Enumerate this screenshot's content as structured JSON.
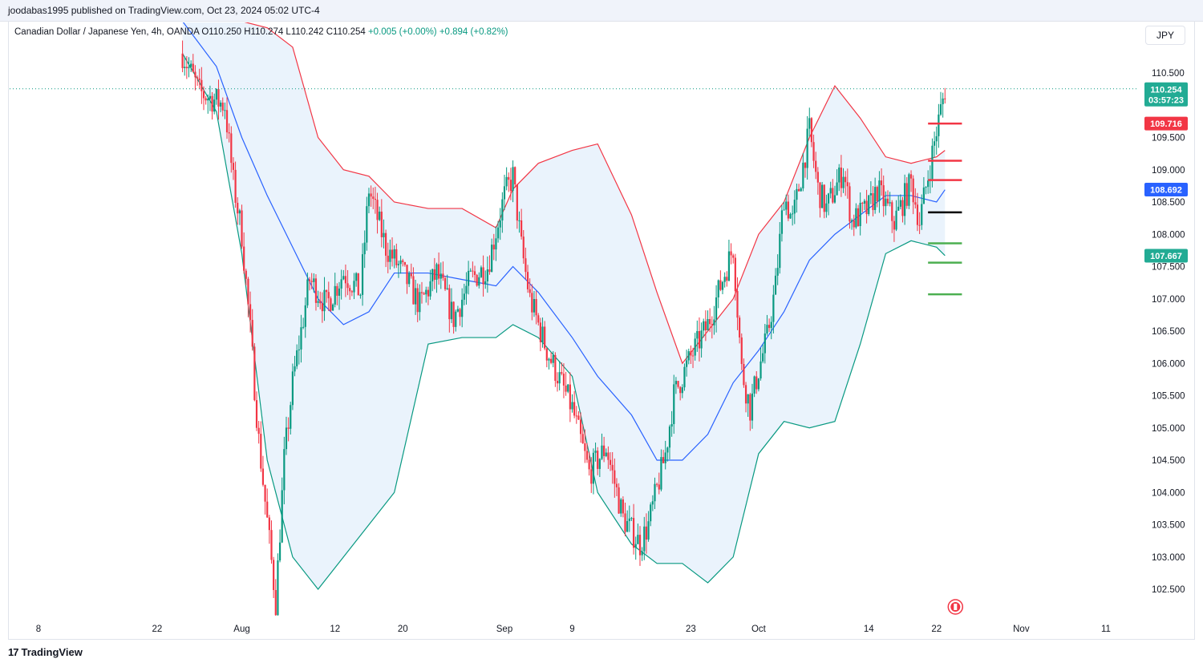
{
  "header": {
    "published_line": "joodabas1995 published on TradingView.com, Oct 23, 2024 05:02 UTC-4",
    "legend_prefix": "Canadian Dollar / Japanese Yen, 4h, OANDA",
    "legend_ohlc": "O110.250  H110.274  L110.242  C110.254",
    "legend_change": "+0.005 (+0.00%)  +0.894 (+0.82%)",
    "currency": "JPY"
  },
  "footer": {
    "brand": "TradingView",
    "logo": "17"
  },
  "colors": {
    "up": "#089981",
    "down": "#f23645",
    "upper_band": "#f23645",
    "basis": "#2962ff",
    "lower_band": "#089981",
    "band_fill": "#e3effb",
    "price_tag": "#22ab94"
  },
  "chart_data": {
    "type": "candlestick",
    "symbol": "CADJPY",
    "timeframe": "4h",
    "y_ticks": [
      110.5,
      110.0,
      109.5,
      109.0,
      108.5,
      108.0,
      107.5,
      107.0,
      106.5,
      106.0,
      105.5,
      105.0,
      104.5,
      104.0,
      103.5,
      103.0,
      102.5
    ],
    "y_tick_labels": [
      "110.500",
      "",
      "109.500",
      "109.000",
      "108.500",
      "108.000",
      "107.500",
      "107.000",
      "106.500",
      "106.000",
      "105.500",
      "105.000",
      "104.500",
      "104.000",
      "103.500",
      "103.000",
      "102.500"
    ],
    "ylim": [
      102.0,
      111.0
    ],
    "x_ticks": [
      {
        "label": "8",
        "date": "2024-07-08"
      },
      {
        "label": "22",
        "date": "2024-07-22"
      },
      {
        "label": "Aug",
        "date": "2024-08-01"
      },
      {
        "label": "12",
        "date": "2024-08-12"
      },
      {
        "label": "20",
        "date": "2024-08-20"
      },
      {
        "label": "Sep",
        "date": "2024-09-01"
      },
      {
        "label": "9",
        "date": "2024-09-09"
      },
      {
        "label": "23",
        "date": "2024-09-23"
      },
      {
        "label": "Oct",
        "date": "2024-10-01"
      },
      {
        "label": "14",
        "date": "2024-10-14"
      },
      {
        "label": "22",
        "date": "2024-10-22"
      },
      {
        "label": "Nov",
        "date": "2024-11-01"
      },
      {
        "label": "11",
        "date": "2024-11-11"
      }
    ],
    "price_path": [
      {
        "date": "2024-07-25",
        "price": 110.8
      },
      {
        "date": "2024-07-27",
        "price": 110.2
      },
      {
        "date": "2024-07-30",
        "price": 110.0
      },
      {
        "date": "2024-07-31",
        "price": 108.8
      },
      {
        "date": "2024-08-01",
        "price": 108.0
      },
      {
        "date": "2024-08-02",
        "price": 106.5
      },
      {
        "date": "2024-08-03",
        "price": 104.8
      },
      {
        "date": "2024-08-05",
        "price": 102.3
      },
      {
        "date": "2024-08-06",
        "price": 104.5
      },
      {
        "date": "2024-08-07",
        "price": 105.7
      },
      {
        "date": "2024-08-09",
        "price": 107.3
      },
      {
        "date": "2024-08-11",
        "price": 106.9
      },
      {
        "date": "2024-08-13",
        "price": 107.4
      },
      {
        "date": "2024-08-15",
        "price": 107.1
      },
      {
        "date": "2024-08-16",
        "price": 108.7
      },
      {
        "date": "2024-08-18",
        "price": 107.8
      },
      {
        "date": "2024-08-20",
        "price": 107.4
      },
      {
        "date": "2024-08-22",
        "price": 106.9
      },
      {
        "date": "2024-08-24",
        "price": 107.4
      },
      {
        "date": "2024-08-26",
        "price": 106.7
      },
      {
        "date": "2024-08-28",
        "price": 107.3
      },
      {
        "date": "2024-08-30",
        "price": 107.5
      },
      {
        "date": "2024-09-01",
        "price": 108.6
      },
      {
        "date": "2024-09-02",
        "price": 108.9
      },
      {
        "date": "2024-09-03",
        "price": 107.8
      },
      {
        "date": "2024-09-04",
        "price": 107.0
      },
      {
        "date": "2024-09-06",
        "price": 106.2
      },
      {
        "date": "2024-09-08",
        "price": 105.6
      },
      {
        "date": "2024-09-09",
        "price": 105.3
      },
      {
        "date": "2024-09-11",
        "price": 104.3
      },
      {
        "date": "2024-09-13",
        "price": 104.7
      },
      {
        "date": "2024-09-15",
        "price": 103.6
      },
      {
        "date": "2024-09-17",
        "price": 103.2
      },
      {
        "date": "2024-09-18",
        "price": 103.5
      },
      {
        "date": "2024-09-20",
        "price": 104.6
      },
      {
        "date": "2024-09-21",
        "price": 105.5
      },
      {
        "date": "2024-09-23",
        "price": 106.1
      },
      {
        "date": "2024-09-25",
        "price": 106.6
      },
      {
        "date": "2024-09-27",
        "price": 107.4
      },
      {
        "date": "2024-09-28",
        "price": 107.8
      },
      {
        "date": "2024-09-29",
        "price": 105.9
      },
      {
        "date": "2024-09-30",
        "price": 105.3
      },
      {
        "date": "2024-10-01",
        "price": 105.9
      },
      {
        "date": "2024-10-02",
        "price": 106.4
      },
      {
        "date": "2024-10-03",
        "price": 107.2
      },
      {
        "date": "2024-10-04",
        "price": 108.6
      },
      {
        "date": "2024-10-05",
        "price": 108.2
      },
      {
        "date": "2024-10-07",
        "price": 109.6
      },
      {
        "date": "2024-10-08",
        "price": 108.7
      },
      {
        "date": "2024-10-09",
        "price": 108.4
      },
      {
        "date": "2024-10-11",
        "price": 109.0
      },
      {
        "date": "2024-10-12",
        "price": 108.2
      },
      {
        "date": "2024-10-14",
        "price": 108.4
      },
      {
        "date": "2024-10-15",
        "price": 108.7
      },
      {
        "date": "2024-10-17",
        "price": 108.2
      },
      {
        "date": "2024-10-19",
        "price": 108.8
      },
      {
        "date": "2024-10-20",
        "price": 108.2
      },
      {
        "date": "2024-10-21",
        "price": 108.9
      },
      {
        "date": "2024-10-22",
        "price": 109.6
      },
      {
        "date": "2024-10-23",
        "price": 110.25
      }
    ],
    "bollinger": {
      "dates": [
        "2024-07-25",
        "2024-07-29",
        "2024-08-01",
        "2024-08-04",
        "2024-08-07",
        "2024-08-10",
        "2024-08-13",
        "2024-08-16",
        "2024-08-19",
        "2024-08-23",
        "2024-08-27",
        "2024-08-31",
        "2024-09-02",
        "2024-09-05",
        "2024-09-09",
        "2024-09-12",
        "2024-09-16",
        "2024-09-19",
        "2024-09-22",
        "2024-09-25",
        "2024-09-28",
        "2024-10-01",
        "2024-10-04",
        "2024-10-07",
        "2024-10-10",
        "2024-10-13",
        "2024-10-16",
        "2024-10-19",
        "2024-10-22",
        "2024-10-23"
      ],
      "upper": [
        111.3,
        111.3,
        111.3,
        111.2,
        110.9,
        109.5,
        109.0,
        108.9,
        108.5,
        108.4,
        108.4,
        108.1,
        108.7,
        109.1,
        109.3,
        109.4,
        108.3,
        107.1,
        106.0,
        106.5,
        107.0,
        108.0,
        108.5,
        109.5,
        110.3,
        109.8,
        109.2,
        109.1,
        109.2,
        109.3
      ],
      "basis": [
        111.3,
        110.6,
        109.5,
        108.6,
        107.8,
        107.0,
        106.6,
        106.8,
        107.4,
        107.4,
        107.3,
        107.2,
        107.5,
        107.1,
        106.4,
        105.8,
        105.2,
        104.5,
        104.5,
        104.9,
        105.7,
        106.2,
        106.8,
        107.6,
        108.0,
        108.3,
        108.6,
        108.6,
        108.5,
        108.69
      ],
      "lower": [
        110.8,
        109.9,
        107.7,
        104.5,
        103.0,
        102.5,
        103.0,
        103.5,
        104.0,
        106.3,
        106.4,
        106.4,
        106.6,
        106.4,
        105.8,
        104.0,
        103.2,
        102.9,
        102.9,
        102.6,
        103.0,
        104.6,
        105.1,
        105.0,
        105.1,
        106.3,
        107.7,
        107.9,
        107.8,
        107.67
      ]
    },
    "levels": [
      {
        "price": 109.716,
        "color": "#f23645",
        "start": "2024-10-21",
        "end": "2024-10-25"
      },
      {
        "price": 109.14,
        "color": "#f23645",
        "start": "2024-10-21",
        "end": "2024-10-25"
      },
      {
        "price": 108.84,
        "color": "#f23645",
        "start": "2024-10-21",
        "end": "2024-10-25"
      },
      {
        "price": 108.34,
        "color": "#000000",
        "start": "2024-10-21",
        "end": "2024-10-25"
      },
      {
        "price": 107.86,
        "color": "#4caf50",
        "start": "2024-10-21",
        "end": "2024-10-25"
      },
      {
        "price": 107.56,
        "color": "#4caf50",
        "start": "2024-10-21",
        "end": "2024-10-25"
      },
      {
        "price": 107.07,
        "color": "#4caf50",
        "start": "2024-10-21",
        "end": "2024-10-25"
      }
    ],
    "price_tags": [
      {
        "label": "110.254",
        "sub": "03:57:23",
        "price": 110.254,
        "color": "#22ab94"
      },
      {
        "label": "109.716",
        "price": 109.716,
        "color": "#f23645"
      },
      {
        "label": "108.692",
        "price": 108.692,
        "color": "#2962ff"
      },
      {
        "label": "107.667",
        "price": 107.667,
        "color": "#22ab94"
      }
    ],
    "last_price": 110.254,
    "grid": false
  }
}
